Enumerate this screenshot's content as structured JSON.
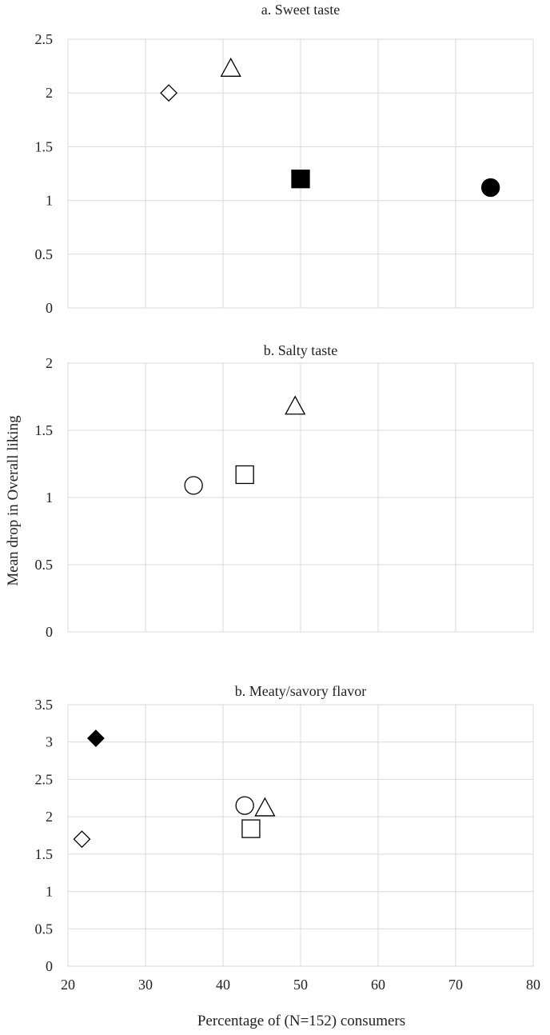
{
  "figure": {
    "ylabel": "Mean drop in Overall liking",
    "xlabel": "Percentage of (N=152) consumers"
  },
  "chart_data": [
    {
      "type": "scatter",
      "title": "a. Sweet taste",
      "xlim": [
        20,
        80
      ],
      "ylim": [
        0,
        2.5
      ],
      "x_ticks": [
        "20",
        "30",
        "40",
        "50",
        "60",
        "70",
        "80"
      ],
      "y_ticks": [
        "0",
        "0.5",
        "1",
        "1.5",
        "2",
        "2.5"
      ],
      "x_ticklabels_shown": false,
      "grid": true,
      "points": [
        {
          "x": 33.0,
          "y": 2.0,
          "marker": "diamond",
          "filled": false
        },
        {
          "x": 41.0,
          "y": 2.23,
          "marker": "triangle",
          "filled": false
        },
        {
          "x": 50.0,
          "y": 1.2,
          "marker": "square",
          "filled": true
        },
        {
          "x": 74.5,
          "y": 1.12,
          "marker": "circle",
          "filled": true
        }
      ]
    },
    {
      "type": "scatter",
      "title": "b. Salty taste",
      "xlim": [
        20,
        80
      ],
      "ylim": [
        0,
        2
      ],
      "x_ticks": [
        "20",
        "30",
        "40",
        "50",
        "60",
        "70",
        "80"
      ],
      "y_ticks": [
        "0",
        "0.5",
        "1",
        "1.5",
        "2"
      ],
      "x_ticklabels_shown": false,
      "grid": true,
      "points": [
        {
          "x": 36.2,
          "y": 1.09,
          "marker": "circle",
          "filled": false
        },
        {
          "x": 42.8,
          "y": 1.17,
          "marker": "square",
          "filled": false
        },
        {
          "x": 49.3,
          "y": 1.68,
          "marker": "triangle",
          "filled": false
        }
      ]
    },
    {
      "type": "scatter",
      "title": "b. Meaty/savory flavor",
      "xlim": [
        20,
        80
      ],
      "ylim": [
        0,
        3.5
      ],
      "x_ticks": [
        "20",
        "30",
        "40",
        "50",
        "60",
        "70",
        "80"
      ],
      "y_ticks": [
        "0",
        "0.5",
        "1",
        "1.5",
        "2",
        "2.5",
        "3",
        "3.5"
      ],
      "x_ticklabels_shown": true,
      "grid": true,
      "points": [
        {
          "x": 21.8,
          "y": 1.7,
          "marker": "diamond",
          "filled": false
        },
        {
          "x": 23.6,
          "y": 3.05,
          "marker": "diamond",
          "filled": true
        },
        {
          "x": 42.8,
          "y": 2.15,
          "marker": "circle",
          "filled": false
        },
        {
          "x": 43.6,
          "y": 1.84,
          "marker": "square",
          "filled": false
        },
        {
          "x": 45.4,
          "y": 2.12,
          "marker": "triangle",
          "filled": false
        }
      ]
    }
  ]
}
